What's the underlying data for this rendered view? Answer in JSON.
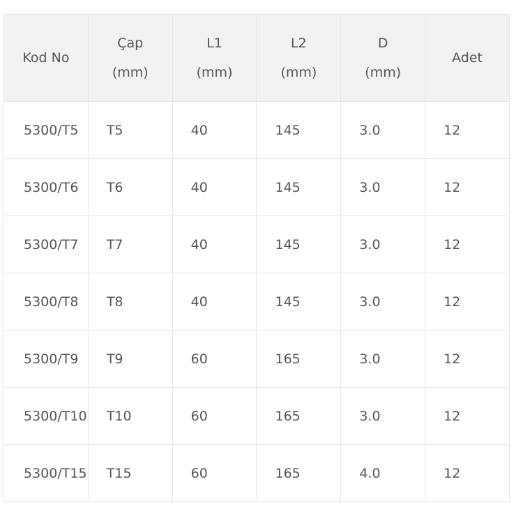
{
  "table": {
    "headers": [
      {
        "line1": "Kod No",
        "line2": ""
      },
      {
        "line1": "Çap",
        "line2": "(mm)"
      },
      {
        "line1": "L1",
        "line2": "(mm)"
      },
      {
        "line1": "L2",
        "line2": "(mm)"
      },
      {
        "line1": "D",
        "line2": "(mm)"
      },
      {
        "line1": "Adet",
        "line2": ""
      }
    ],
    "rows": [
      [
        "5300/T5",
        "T5",
        "40",
        "145",
        "3.0",
        "12"
      ],
      [
        "5300/T6",
        "T6",
        "40",
        "145",
        "3.0",
        "12"
      ],
      [
        "5300/T7",
        "T7",
        "40",
        "145",
        "3.0",
        "12"
      ],
      [
        "5300/T8",
        "T8",
        "40",
        "145",
        "3.0",
        "12"
      ],
      [
        "5300/T9",
        "T9",
        "60",
        "165",
        "3.0",
        "12"
      ],
      [
        "5300/T10",
        "T10",
        "60",
        "165",
        "3.0",
        "12"
      ],
      [
        "5300/T15",
        "T15",
        "60",
        "165",
        "4.0",
        "12"
      ]
    ]
  }
}
